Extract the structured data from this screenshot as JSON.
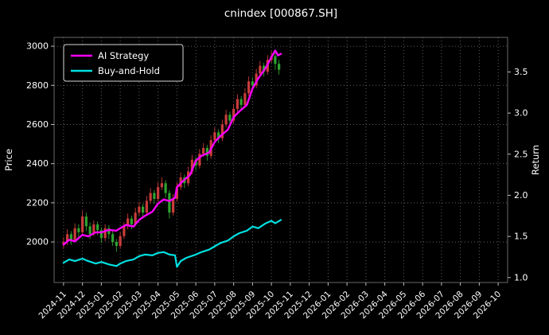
{
  "colors": {
    "background": "#000000",
    "text": "#ffffff",
    "grid": "#5f5f5f",
    "spine": "#bbbbbb",
    "legend_border": "#d9d9d9"
  },
  "chart_data": {
    "type": "candlestick+line",
    "title": "cnindex [000867.SH]",
    "left_axis": {
      "label": "Price",
      "ticks": [
        2000,
        2200,
        2400,
        2600,
        2800,
        3000
      ],
      "range": [
        1793,
        3045
      ]
    },
    "right_axis": {
      "label": "Return",
      "ticks": [
        1.0,
        1.5,
        2.0,
        2.5,
        3.0,
        3.5
      ],
      "range": [
        0.94,
        3.92
      ]
    },
    "x_axis": {
      "tick_labels": [
        "2024-11",
        "2024-12",
        "2025-01",
        "2025-02",
        "2025-03",
        "2025-04",
        "2025-05",
        "2025-06",
        "2025-07",
        "2025-08",
        "2025-09",
        "2025-10",
        "2025-11",
        "2025-12",
        "2026-01",
        "2026-02",
        "2026-03",
        "2026-04",
        "2026-05",
        "2026-06",
        "2026-07",
        "2026-08",
        "2026-09",
        "2026-10"
      ]
    },
    "legend": {
      "position": "upper-left",
      "entries": [
        "AI Strategy",
        "Buy-and-Hold"
      ]
    },
    "series": [
      {
        "name": "AI Strategy",
        "axis": "right",
        "color": "#ff00ff",
        "width": 2.4,
        "points": [
          [
            0,
            1.4
          ],
          [
            0.3,
            1.46
          ],
          [
            0.6,
            1.44
          ],
          [
            1,
            1.52
          ],
          [
            1.3,
            1.5
          ],
          [
            1.7,
            1.55
          ],
          [
            2,
            1.55
          ],
          [
            2.4,
            1.58
          ],
          [
            2.8,
            1.57
          ],
          [
            3,
            1.6
          ],
          [
            3.3,
            1.64
          ],
          [
            3.7,
            1.62
          ],
          [
            4,
            1.7
          ],
          [
            4.3,
            1.75
          ],
          [
            4.7,
            1.8
          ],
          [
            5,
            1.9
          ],
          [
            5.3,
            1.95
          ],
          [
            5.6,
            1.93
          ],
          [
            5.9,
            1.97
          ],
          [
            6,
            2.1
          ],
          [
            6.3,
            2.17
          ],
          [
            6.7,
            2.25
          ],
          [
            7,
            2.42
          ],
          [
            7.3,
            2.48
          ],
          [
            7.7,
            2.52
          ],
          [
            8,
            2.65
          ],
          [
            8.3,
            2.72
          ],
          [
            8.7,
            2.8
          ],
          [
            9,
            2.95
          ],
          [
            9.3,
            3.02
          ],
          [
            9.7,
            3.1
          ],
          [
            10,
            3.3
          ],
          [
            10.3,
            3.42
          ],
          [
            10.7,
            3.55
          ],
          [
            11,
            3.68
          ],
          [
            11.2,
            3.76
          ],
          [
            11.35,
            3.7
          ],
          [
            11.5,
            3.72
          ]
        ]
      },
      {
        "name": "Buy-and-Hold",
        "axis": "right",
        "color": "#00e0e0",
        "width": 2.2,
        "points": [
          [
            0,
            1.18
          ],
          [
            0.3,
            1.22
          ],
          [
            0.6,
            1.2
          ],
          [
            1,
            1.23
          ],
          [
            1.3,
            1.2
          ],
          [
            1.7,
            1.17
          ],
          [
            2,
            1.19
          ],
          [
            2.4,
            1.16
          ],
          [
            2.8,
            1.14
          ],
          [
            3,
            1.17
          ],
          [
            3.3,
            1.2
          ],
          [
            3.7,
            1.22
          ],
          [
            4,
            1.26
          ],
          [
            4.3,
            1.28
          ],
          [
            4.7,
            1.27
          ],
          [
            5,
            1.3
          ],
          [
            5.3,
            1.31
          ],
          [
            5.6,
            1.28
          ],
          [
            5.9,
            1.27
          ],
          [
            6,
            1.13
          ],
          [
            6.2,
            1.2
          ],
          [
            6.5,
            1.24
          ],
          [
            7,
            1.28
          ],
          [
            7.3,
            1.31
          ],
          [
            7.7,
            1.34
          ],
          [
            8,
            1.38
          ],
          [
            8.3,
            1.42
          ],
          [
            8.7,
            1.45
          ],
          [
            9,
            1.5
          ],
          [
            9.3,
            1.54
          ],
          [
            9.7,
            1.57
          ],
          [
            10,
            1.62
          ],
          [
            10.3,
            1.6
          ],
          [
            10.7,
            1.66
          ],
          [
            11,
            1.69
          ],
          [
            11.2,
            1.66
          ],
          [
            11.5,
            1.7
          ]
        ]
      }
    ],
    "candles": {
      "axis": "left",
      "up_color": "#c93c3c",
      "down_color": "#2fa32f",
      "data": [
        [
          0.0,
          1990,
          2025,
          1965,
          2000
        ],
        [
          0.2,
          2000,
          2065,
          1985,
          2040
        ],
        [
          0.4,
          2040,
          2055,
          1985,
          2010
        ],
        [
          0.6,
          2010,
          2095,
          2000,
          2070
        ],
        [
          0.8,
          2070,
          2090,
          2025,
          2050
        ],
        [
          1.0,
          2050,
          2160,
          2040,
          2130
        ],
        [
          1.2,
          2130,
          2150,
          2055,
          2080
        ],
        [
          1.4,
          2080,
          2100,
          2015,
          2040
        ],
        [
          1.6,
          2040,
          2110,
          2030,
          2090
        ],
        [
          1.8,
          2090,
          2105,
          2035,
          2060
        ],
        [
          2.0,
          2060,
          2075,
          1995,
          2020
        ],
        [
          2.2,
          2020,
          2090,
          2005,
          2070
        ],
        [
          2.4,
          2070,
          2085,
          2015,
          2040
        ],
        [
          2.6,
          2040,
          2055,
          1980,
          2000
        ],
        [
          2.8,
          2000,
          2015,
          1950,
          1980
        ],
        [
          3.0,
          1980,
          2050,
          1965,
          2030
        ],
        [
          3.2,
          2030,
          2100,
          2015,
          2080
        ],
        [
          3.4,
          2080,
          2145,
          2065,
          2120
        ],
        [
          3.6,
          2120,
          2135,
          2065,
          2090
        ],
        [
          3.8,
          2090,
          2175,
          2080,
          2150
        ],
        [
          4.0,
          2150,
          2205,
          2135,
          2180
        ],
        [
          4.2,
          2180,
          2195,
          2125,
          2150
        ],
        [
          4.4,
          2150,
          2235,
          2140,
          2210
        ],
        [
          4.6,
          2210,
          2275,
          2195,
          2250
        ],
        [
          4.8,
          2250,
          2265,
          2195,
          2220
        ],
        [
          5.0,
          2220,
          2305,
          2205,
          2280
        ],
        [
          5.2,
          2280,
          2330,
          2265,
          2300
        ],
        [
          5.4,
          2300,
          2315,
          2225,
          2250
        ],
        [
          5.6,
          2250,
          2265,
          2120,
          2150
        ],
        [
          5.8,
          2150,
          2245,
          2135,
          2220
        ],
        [
          6.0,
          2220,
          2305,
          2205,
          2280
        ],
        [
          6.2,
          2280,
          2355,
          2265,
          2330
        ],
        [
          6.4,
          2330,
          2345,
          2275,
          2300
        ],
        [
          6.6,
          2300,
          2385,
          2285,
          2360
        ],
        [
          6.8,
          2360,
          2445,
          2345,
          2420
        ],
        [
          7.0,
          2420,
          2435,
          2365,
          2390
        ],
        [
          7.2,
          2390,
          2475,
          2375,
          2450
        ],
        [
          7.4,
          2450,
          2505,
          2435,
          2480
        ],
        [
          7.6,
          2480,
          2495,
          2415,
          2440
        ],
        [
          7.8,
          2440,
          2545,
          2425,
          2520
        ],
        [
          8.0,
          2520,
          2585,
          2505,
          2560
        ],
        [
          8.2,
          2560,
          2575,
          2505,
          2530
        ],
        [
          8.4,
          2530,
          2625,
          2515,
          2600
        ],
        [
          8.6,
          2600,
          2675,
          2585,
          2650
        ],
        [
          8.8,
          2650,
          2665,
          2595,
          2620
        ],
        [
          9.0,
          2620,
          2705,
          2605,
          2680
        ],
        [
          9.2,
          2680,
          2755,
          2665,
          2730
        ],
        [
          9.4,
          2730,
          2745,
          2675,
          2700
        ],
        [
          9.6,
          2700,
          2785,
          2685,
          2760
        ],
        [
          9.8,
          2760,
          2845,
          2745,
          2820
        ],
        [
          10.0,
          2820,
          2840,
          2775,
          2800
        ],
        [
          10.2,
          2800,
          2885,
          2785,
          2860
        ],
        [
          10.4,
          2860,
          2925,
          2845,
          2900
        ],
        [
          10.6,
          2900,
          2915,
          2845,
          2870
        ],
        [
          10.8,
          2870,
          2955,
          2855,
          2930
        ],
        [
          11.0,
          2930,
          2975,
          2915,
          2950
        ],
        [
          11.2,
          2950,
          2965,
          2880,
          2910
        ],
        [
          11.4,
          2910,
          2930,
          2855,
          2880
        ]
      ]
    }
  }
}
